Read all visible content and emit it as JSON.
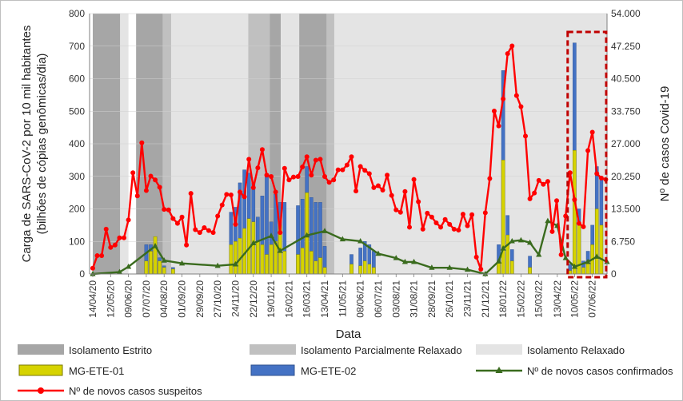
{
  "chart_data": {
    "type": "bar",
    "xlabel": "Data",
    "ylabel_left": "Carga de SARS-CoV-2 por 10 mil habitantes (bilhões de cópias genômicas/dia)",
    "ylabel_right": "Nº de casos Covid-19",
    "y_left_range": [
      0,
      800
    ],
    "y_left_ticks": [
      "0",
      "100",
      "200",
      "300",
      "400",
      "500",
      "600",
      "700",
      "800"
    ],
    "y_right_range": [
      0,
      54000
    ],
    "y_right_ticks": [
      "0",
      "6.750",
      "13.500",
      "20.250",
      "27.000",
      "33.750",
      "40.500",
      "47.250",
      "54.000"
    ],
    "x_tick_labels": [
      "14/04/20",
      "12/05/20",
      "09/06/20",
      "07/07/20",
      "04/08/20",
      "01/09/20",
      "29/09/20",
      "27/10/20",
      "24/11/20",
      "22/12/20",
      "19/01/21",
      "16/02/21",
      "16/03/21",
      "13/04/21",
      "11/05/21",
      "08/06/21",
      "06/07/21",
      "03/08/21",
      "31/08/21",
      "28/09/21",
      "26/10/21",
      "23/11/21",
      "21/12/21",
      "18/01/22",
      "15/02/22",
      "15/03/22",
      "13/04/22",
      "10/05/22",
      "07/06/22"
    ],
    "isolation_periods": [
      {
        "type": "estrito",
        "start": "14/04/20",
        "end": "27/05/20"
      },
      {
        "type": "relaxado",
        "start": "27/05/20",
        "end": "09/06/20"
      },
      {
        "type": "estrito",
        "start": "21/06/20",
        "end": "02/08/20"
      },
      {
        "type": "parcial",
        "start": "02/08/20",
        "end": "15/08/20"
      },
      {
        "type": "relaxado",
        "start": "15/08/20",
        "end": "14/12/20"
      },
      {
        "type": "parcial",
        "start": "14/12/20",
        "end": "17/01/21"
      },
      {
        "type": "estrito",
        "start": "17/01/21",
        "end": "03/02/21"
      },
      {
        "type": "relaxado",
        "start": "03/02/21",
        "end": "04/03/21"
      },
      {
        "type": "estrito",
        "start": "04/03/21",
        "end": "16/04/21"
      },
      {
        "type": "parcial",
        "start": "16/04/21",
        "end": "28/04/21"
      },
      {
        "type": "relaxado",
        "start": "28/04/21",
        "end": "30/06/22"
      }
    ],
    "series": [
      {
        "name": "MG-ETE-01",
        "kind": "bar",
        "axis": "left",
        "color": "#d6d300",
        "x": [
          "07/07/20",
          "14/07/20",
          "21/07/20",
          "28/07/20",
          "04/08/20",
          "18/08/20",
          "17/11/20",
          "24/11/20",
          "01/12/20",
          "08/12/20",
          "15/12/20",
          "22/12/20",
          "29/12/20",
          "05/01/21",
          "12/01/21",
          "19/01/21",
          "26/01/21",
          "02/02/21",
          "09/02/21",
          "02/03/21",
          "09/03/21",
          "16/03/21",
          "23/03/21",
          "30/03/21",
          "06/04/21",
          "13/04/21",
          "25/05/21",
          "08/06/21",
          "15/06/21",
          "22/06/21",
          "29/06/21",
          "21/12/21",
          "11/01/22",
          "18/01/22",
          "25/01/22",
          "01/02/22",
          "01/03/22",
          "03/05/22",
          "10/05/22",
          "17/05/22",
          "24/05/22",
          "31/05/22",
          "07/06/22",
          "14/06/22",
          "21/06/22"
        ],
        "values": [
          40,
          70,
          115,
          40,
          20,
          15,
          90,
          100,
          110,
          140,
          170,
          160,
          100,
          90,
          60,
          90,
          100,
          150,
          70,
          60,
          80,
          250,
          70,
          40,
          50,
          20,
          30,
          25,
          40,
          30,
          20,
          2,
          40,
          350,
          120,
          40,
          20,
          10,
          380,
          150,
          20,
          40,
          90,
          200,
          150
        ]
      },
      {
        "name": "MG-ETE-02",
        "kind": "bar",
        "axis": "left",
        "color": "#4472c4",
        "x": [
          "07/07/20",
          "14/07/20",
          "21/07/20",
          "28/07/20",
          "04/08/20",
          "18/08/20",
          "17/11/20",
          "24/11/20",
          "01/12/20",
          "08/12/20",
          "15/12/20",
          "22/12/20",
          "29/12/20",
          "05/01/21",
          "12/01/21",
          "19/01/21",
          "26/01/21",
          "02/02/21",
          "09/02/21",
          "02/03/21",
          "09/03/21",
          "16/03/21",
          "23/03/21",
          "30/03/21",
          "06/04/21",
          "13/04/21",
          "25/05/21",
          "08/06/21",
          "15/06/21",
          "22/06/21",
          "29/06/21",
          "21/12/21",
          "11/01/22",
          "18/01/22",
          "25/01/22",
          "01/02/22",
          "01/03/22",
          "03/05/22",
          "10/05/22",
          "17/05/22",
          "24/05/22",
          "31/05/22",
          "07/06/22",
          "14/06/22",
          "21/06/22"
        ],
        "values": [
          90,
          90,
          35,
          50,
          25,
          20,
          190,
          205,
          280,
          320,
          310,
          280,
          175,
          240,
          300,
          160,
          245,
          220,
          220,
          210,
          230,
          330,
          235,
          220,
          220,
          85,
          60,
          80,
          100,
          90,
          70,
          3,
          90,
          625,
          180,
          75,
          55,
          30,
          710,
          200,
          40,
          70,
          150,
          330,
          300
        ]
      },
      {
        "name": "Nº de novos casos confirmados",
        "kind": "line",
        "axis": "right",
        "color": "#3a6b1e",
        "x": [
          "14/04/20",
          "26/05/20",
          "09/06/20",
          "21/07/20",
          "04/08/20",
          "01/09/20",
          "27/10/20",
          "24/11/20",
          "22/12/20",
          "19/01/21",
          "02/02/21",
          "16/03/21",
          "13/04/21",
          "11/05/21",
          "08/06/21",
          "06/07/21",
          "03/08/21",
          "17/08/21",
          "31/08/21",
          "28/09/21",
          "26/10/21",
          "23/11/21",
          "21/12/21",
          "11/01/22",
          "18/01/22",
          "01/02/22",
          "15/02/22",
          "01/03/22",
          "15/03/22",
          "29/03/22",
          "13/04/22",
          "26/04/22",
          "10/05/22",
          "31/05/22",
          "14/06/22",
          "30/06/22"
        ],
        "values": [
          0,
          400,
          1500,
          5800,
          2800,
          2200,
          1700,
          2000,
          6400,
          7900,
          4800,
          8000,
          8900,
          7200,
          6800,
          4200,
          3300,
          2500,
          2500,
          1300,
          1300,
          900,
          0,
          2600,
          5300,
          6800,
          7000,
          6500,
          4000,
          11000,
          10000,
          3300,
          1500,
          2500,
          3600,
          2500
        ]
      },
      {
        "name": "Nº de novos casos suspeitos",
        "kind": "line",
        "axis": "right",
        "color": "#ff0000",
        "x": [
          "14/04/20",
          "21/04/20",
          "28/04/20",
          "05/05/20",
          "12/05/20",
          "19/05/20",
          "26/05/20",
          "02/06/20",
          "09/06/20",
          "16/06/20",
          "23/06/20",
          "30/06/20",
          "07/07/20",
          "14/07/20",
          "21/07/20",
          "28/07/20",
          "04/08/20",
          "11/08/20",
          "18/08/20",
          "25/08/20",
          "01/09/20",
          "08/09/20",
          "15/09/20",
          "22/09/20",
          "29/09/20",
          "06/10/20",
          "13/10/20",
          "20/10/20",
          "27/10/20",
          "03/11/20",
          "10/11/20",
          "17/11/20",
          "24/11/20",
          "01/12/20",
          "08/12/20",
          "15/12/20",
          "22/12/20",
          "29/12/20",
          "05/01/21",
          "12/01/21",
          "19/01/21",
          "26/01/21",
          "02/02/21",
          "09/02/21",
          "16/02/21",
          "23/02/21",
          "02/03/21",
          "09/03/21",
          "16/03/21",
          "23/03/21",
          "30/03/21",
          "06/04/21",
          "13/04/21",
          "20/04/21",
          "27/04/21",
          "04/05/21",
          "11/05/21",
          "18/05/21",
          "25/05/21",
          "01/06/21",
          "08/06/21",
          "15/06/21",
          "22/06/21",
          "29/06/21",
          "06/07/21",
          "13/07/21",
          "20/07/21",
          "27/07/21",
          "03/08/21",
          "10/08/21",
          "17/08/21",
          "24/08/21",
          "31/08/21",
          "07/09/21",
          "14/09/21",
          "21/09/21",
          "28/09/21",
          "05/10/21",
          "12/10/21",
          "19/10/21",
          "26/10/21",
          "02/11/21",
          "09/11/21",
          "16/11/21",
          "23/11/21",
          "30/11/21",
          "07/12/21",
          "14/12/21",
          "21/12/21",
          "28/12/21",
          "04/01/22",
          "11/01/22",
          "18/01/22",
          "25/01/22",
          "01/02/22",
          "08/02/22",
          "15/02/22",
          "22/02/22",
          "01/03/22",
          "08/03/22",
          "15/03/22",
          "22/03/22",
          "29/03/22",
          "05/04/22",
          "12/04/22",
          "19/04/22",
          "26/04/22",
          "03/05/22",
          "10/05/22",
          "17/05/22",
          "24/05/22",
          "31/05/22",
          "07/06/22",
          "14/06/22",
          "21/06/22",
          "28/06/22"
        ],
        "values": [
          1200,
          3800,
          3800,
          9300,
          5500,
          6000,
          7500,
          7500,
          11200,
          21000,
          16200,
          27200,
          17300,
          20300,
          19500,
          18000,
          13400,
          13300,
          11500,
          10500,
          11800,
          6000,
          16700,
          9200,
          8600,
          9600,
          9000,
          8600,
          12000,
          14300,
          16500,
          16400,
          10300,
          17000,
          16000,
          23800,
          17900,
          22000,
          25800,
          20500,
          20200,
          17000,
          8600,
          21900,
          19500,
          20100,
          20200,
          22200,
          24300,
          20500,
          23600,
          23800,
          20200,
          19000,
          19500,
          21600,
          21600,
          22600,
          24300,
          17200,
          22300,
          21500,
          20800,
          17900,
          18300,
          17400,
          20500,
          16300,
          13300,
          12800,
          17100,
          9700,
          19600,
          15000,
          9300,
          12600,
          11800,
          10600,
          9700,
          11300,
          10300,
          9300,
          9100,
          12400,
          10000,
          12300,
          3500,
          1000,
          12700,
          19800,
          33800,
          30700,
          36300,
          45700,
          47300,
          37000,
          34700,
          28600,
          15600,
          16800,
          19400,
          18600,
          19200,
          8800,
          15200,
          4000,
          12000,
          21000,
          15400,
          10500,
          9800,
          25600,
          29400,
          20800,
          19900,
          19600
        ]
      }
    ],
    "legend": [
      {
        "label": "Isolamento Estrito",
        "kind": "swatch",
        "color": "#a6a6a6"
      },
      {
        "label": "Isolamento Parcialmente Relaxado",
        "kind": "swatch",
        "color": "#c0c0c0"
      },
      {
        "label": "Isolamento Relaxado",
        "kind": "swatch",
        "color": "#e4e4e4"
      },
      {
        "label": "MG-ETE-01",
        "kind": "bar",
        "color": "#d6d300",
        "border": "#7a7a00"
      },
      {
        "label": "MG-ETE-02",
        "kind": "bar",
        "color": "#4472c4",
        "border": "#2f528f"
      },
      {
        "label": "Nº de novos casos confirmados",
        "kind": "line-triangle",
        "color": "#3a6b1e"
      },
      {
        "label": "Nº de novos casos suspeitos",
        "kind": "line-circle",
        "color": "#ff0000"
      }
    ],
    "annotation": {
      "kind": "dashed-box",
      "color": "#c00000",
      "start": "03/05/22",
      "end": "30/06/22"
    }
  }
}
